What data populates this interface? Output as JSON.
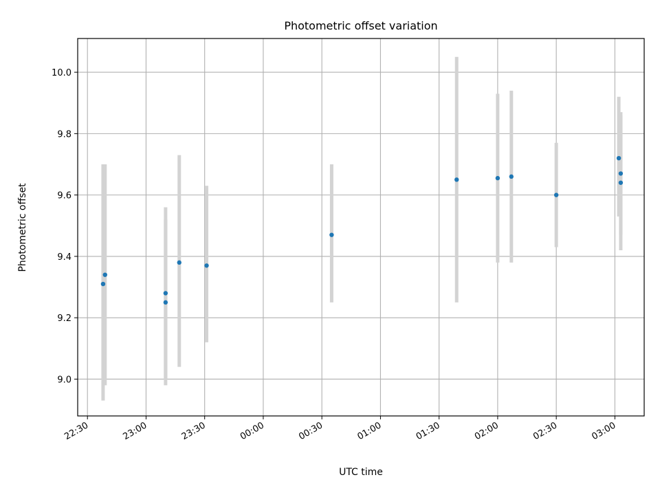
{
  "chart_data": {
    "type": "scatter",
    "title": "Photometric offset variation",
    "xlabel": "UTC time",
    "ylabel": "Photometric offset",
    "grid": true,
    "x_axis_type": "time",
    "xlim": [
      "22:25",
      "03:15"
    ],
    "ylim": [
      8.88,
      10.11
    ],
    "x_ticks": [
      "22:30",
      "23:00",
      "23:30",
      "00:00",
      "00:30",
      "01:00",
      "01:30",
      "02:00",
      "02:30",
      "03:00"
    ],
    "y_ticks": [
      "9.0",
      "9.2",
      "9.4",
      "9.6",
      "9.8",
      "10.0"
    ],
    "point_color": "#1f77b4",
    "errorbar_color": "#d3d3d3",
    "points": [
      {
        "x": "22:38",
        "y": 9.31,
        "err_low": 8.93,
        "err_high": 9.7
      },
      {
        "x": "22:39",
        "y": 9.34,
        "err_low": 8.98,
        "err_high": 9.7
      },
      {
        "x": "23:10",
        "y": 9.25,
        "err_low": 8.98,
        "err_high": 9.52
      },
      {
        "x": "23:10",
        "y": 9.28,
        "err_low": 9.0,
        "err_high": 9.56
      },
      {
        "x": "23:17",
        "y": 9.38,
        "err_low": 9.04,
        "err_high": 9.73
      },
      {
        "x": "23:31",
        "y": 9.37,
        "err_low": 9.12,
        "err_high": 9.63
      },
      {
        "x": "00:35",
        "y": 9.47,
        "err_low": 9.25,
        "err_high": 9.7
      },
      {
        "x": "01:39",
        "y": 9.65,
        "err_low": 9.25,
        "err_high": 10.05
      },
      {
        "x": "02:00",
        "y": 9.655,
        "err_low": 9.38,
        "err_high": 9.93
      },
      {
        "x": "02:07",
        "y": 9.66,
        "err_low": 9.38,
        "err_high": 9.94
      },
      {
        "x": "02:30",
        "y": 9.6,
        "err_low": 9.43,
        "err_high": 9.77
      },
      {
        "x": "03:02",
        "y": 9.72,
        "err_low": 9.53,
        "err_high": 9.92
      },
      {
        "x": "03:03",
        "y": 9.67,
        "err_low": 9.47,
        "err_high": 9.87
      },
      {
        "x": "03:03",
        "y": 9.64,
        "err_low": 9.42,
        "err_high": 9.86
      }
    ]
  }
}
